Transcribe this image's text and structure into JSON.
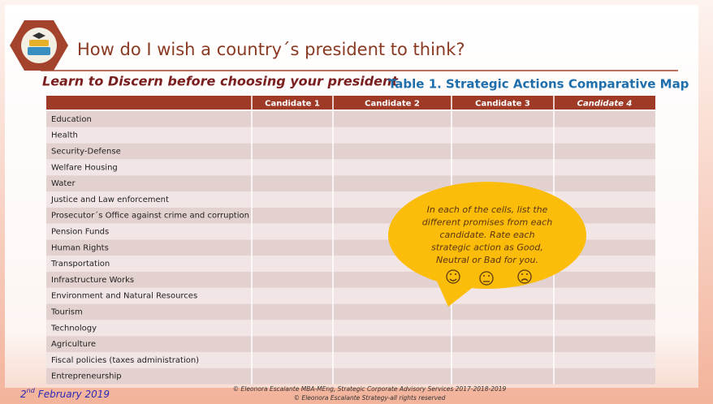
{
  "header": {
    "title": "How do I wish a country´s president to think?",
    "subtitle": "Learn to Discern before choosing your president",
    "table_title": "Table 1. Strategic Actions Comparative Map"
  },
  "table": {
    "columns": [
      "Candidate 1",
      "Candidate 2",
      "Candidate 3",
      "Candidate 4"
    ],
    "rows": [
      "Education",
      "Health",
      "Security-Defense",
      "Welfare Housing",
      "Water",
      "Justice and Law enforcement",
      "Prosecutor´s Office against crime and corruption",
      "Pension Funds",
      "Human Rights",
      "Transportation",
      "Infrastructure Works",
      "Environment and Natural Resources",
      "Tourism",
      "Technology",
      "Agriculture",
      "Fiscal policies (taxes administration)",
      "Entrepreneurship"
    ]
  },
  "callout": {
    "lines": [
      "In each of the cells, list the",
      "different promises from each",
      "candidate. Rate each",
      "strategic action as Good,",
      "Neutral or Bad for you."
    ]
  },
  "footer": {
    "date_day": "2",
    "date_suffix": "nd",
    "date_rest": "February 2019",
    "copyright": [
      "© Eleonora Escalante MBA-MEng, Strategic Corporate Advisory Services 2017-2018-2019",
      "© Eleonora Escalante Strategy-all rights reserved"
    ]
  }
}
